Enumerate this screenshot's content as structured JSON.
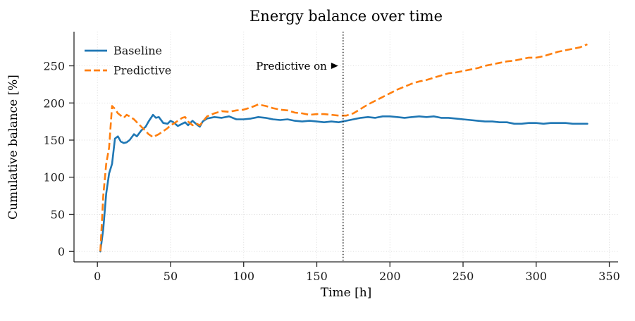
{
  "chart_data": {
    "type": "line",
    "title": "Energy balance over time",
    "xlabel": "Time [h]",
    "ylabel": "Cumulative balance [%]",
    "xlim": [
      -16,
      356
    ],
    "ylim": [
      -14,
      296
    ],
    "xticks": [
      0,
      50,
      100,
      150,
      200,
      250,
      300,
      350
    ],
    "yticks": [
      0,
      50,
      100,
      150,
      200,
      250
    ],
    "grid": true,
    "legend_position": "upper left",
    "background": "#ffffff",
    "grid_color": "#d9d9d9",
    "vline": {
      "x": 168,
      "style": "dotted",
      "color": "#000000"
    },
    "annotation": {
      "text": "Predictive on",
      "x": 168,
      "y": 250
    },
    "series": [
      {
        "name": "Baseline",
        "color": "#1f77b4",
        "dash": "solid",
        "x": [
          2,
          4,
          6,
          8,
          10,
          12,
          14,
          16,
          18,
          20,
          22,
          25,
          27,
          30,
          33,
          35,
          38,
          40,
          42,
          45,
          48,
          50,
          52,
          55,
          58,
          60,
          62,
          65,
          68,
          70,
          72,
          75,
          80,
          85,
          90,
          95,
          100,
          105,
          110,
          115,
          120,
          125,
          130,
          135,
          140,
          145,
          150,
          155,
          160,
          165,
          170,
          175,
          180,
          185,
          190,
          195,
          200,
          205,
          210,
          215,
          220,
          225,
          230,
          235,
          240,
          245,
          250,
          255,
          260,
          265,
          270,
          275,
          280,
          285,
          290,
          295,
          300,
          305,
          310,
          315,
          320,
          325,
          330,
          335
        ],
        "y": [
          0,
          30,
          78,
          105,
          118,
          152,
          155,
          148,
          146,
          147,
          150,
          158,
          155,
          163,
          168,
          175,
          184,
          180,
          181,
          173,
          172,
          176,
          174,
          169,
          172,
          174,
          170,
          176,
          171,
          168,
          175,
          179,
          181,
          180,
          182,
          178,
          178,
          179,
          181,
          180,
          178,
          177,
          178,
          176,
          175,
          176,
          175,
          174,
          175,
          174,
          176,
          178,
          180,
          181,
          180,
          182,
          182,
          181,
          180,
          181,
          182,
          181,
          182,
          180,
          180,
          179,
          178,
          177,
          176,
          175,
          175,
          174,
          174,
          172,
          172,
          173,
          173,
          172,
          173,
          173,
          173,
          172,
          172,
          172
        ]
      },
      {
        "name": "Predictive",
        "color": "#ff7f0e",
        "dash": "dashed",
        "x": [
          2,
          4,
          6,
          8,
          10,
          12,
          14,
          16,
          18,
          20,
          22,
          25,
          28,
          30,
          33,
          35,
          38,
          40,
          42,
          45,
          48,
          50,
          52,
          55,
          58,
          60,
          62,
          65,
          68,
          70,
          75,
          80,
          85,
          90,
          95,
          100,
          105,
          110,
          115,
          120,
          125,
          130,
          135,
          140,
          145,
          150,
          155,
          160,
          165,
          170,
          175,
          180,
          185,
          190,
          195,
          200,
          205,
          210,
          215,
          220,
          225,
          230,
          235,
          240,
          245,
          250,
          255,
          260,
          265,
          270,
          275,
          280,
          285,
          290,
          295,
          300,
          305,
          310,
          315,
          320,
          325,
          330,
          335
        ],
        "y": [
          0,
          75,
          118,
          140,
          196,
          192,
          186,
          183,
          180,
          184,
          182,
          178,
          172,
          168,
          162,
          158,
          154,
          156,
          158,
          162,
          166,
          170,
          172,
          176,
          180,
          181,
          175,
          170,
          172,
          170,
          182,
          186,
          189,
          188,
          190,
          191,
          194,
          198,
          196,
          193,
          191,
          190,
          187,
          186,
          184,
          185,
          185,
          184,
          183,
          183,
          186,
          192,
          198,
          203,
          208,
          213,
          218,
          222,
          226,
          229,
          231,
          234,
          237,
          240,
          241,
          243,
          245,
          247,
          250,
          252,
          254,
          256,
          257,
          259,
          261,
          261,
          263,
          266,
          269,
          271,
          273,
          275,
          279
        ]
      }
    ]
  }
}
